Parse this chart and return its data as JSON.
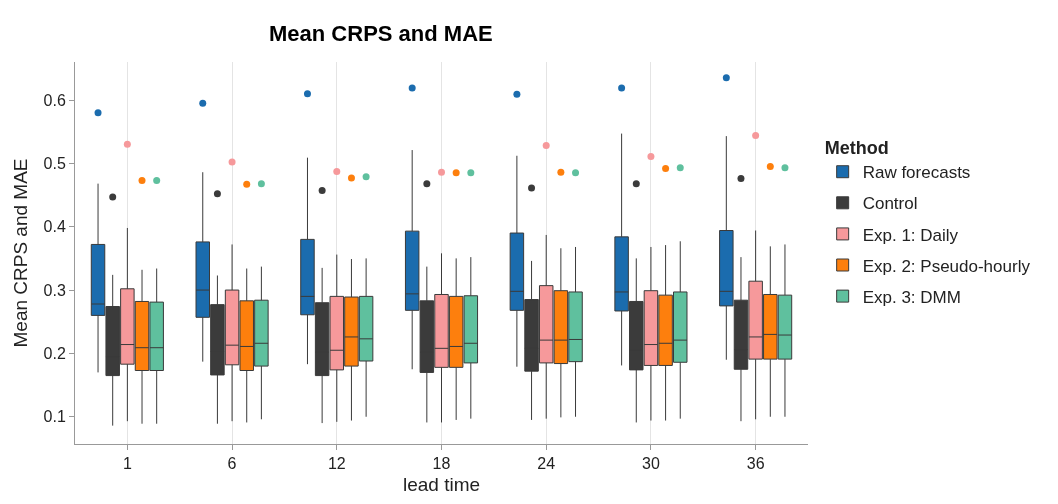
{
  "chart_data": {
    "type": "box",
    "title": "Mean CRPS and MAE",
    "xlabel": "lead time",
    "ylabel": "Mean CRPS and MAE",
    "legend_title": "Method",
    "legend": "right",
    "grid": "x",
    "categories": [
      "1",
      "6",
      "12",
      "18",
      "24",
      "30",
      "36"
    ],
    "ylim": [
      0.057,
      0.66
    ],
    "yticks": [
      0.1,
      0.2,
      0.3,
      0.4,
      0.5,
      0.6
    ],
    "series": [
      {
        "name": "Raw forecasts",
        "color": "#1b6cae",
        "boxes": [
          {
            "low": 0.17,
            "q1": 0.26,
            "median": 0.278,
            "q3": 0.372,
            "high": 0.468,
            "outliers": [
              0.58
            ]
          },
          {
            "low": 0.187,
            "q1": 0.257,
            "median": 0.3,
            "q3": 0.376,
            "high": 0.486,
            "outliers": [
              0.595
            ]
          },
          {
            "low": 0.183,
            "q1": 0.261,
            "median": 0.29,
            "q3": 0.38,
            "high": 0.509,
            "outliers": [
              0.61
            ]
          },
          {
            "low": 0.175,
            "q1": 0.268,
            "median": 0.294,
            "q3": 0.393,
            "high": 0.521,
            "outliers": [
              0.619
            ]
          },
          {
            "low": 0.179,
            "q1": 0.268,
            "median": 0.298,
            "q3": 0.39,
            "high": 0.512,
            "outliers": [
              0.609
            ]
          },
          {
            "low": 0.181,
            "q1": 0.267,
            "median": 0.297,
            "q3": 0.384,
            "high": 0.547,
            "outliers": [
              0.619
            ]
          },
          {
            "low": 0.19,
            "q1": 0.275,
            "median": 0.298,
            "q3": 0.394,
            "high": 0.543,
            "outliers": [
              0.635
            ]
          }
        ]
      },
      {
        "name": "Control",
        "color": "#3b3b3b",
        "boxes": [
          {
            "low": 0.086,
            "q1": 0.165,
            "median": 0.195,
            "q3": 0.274,
            "high": 0.324,
            "outliers": [
              0.447
            ]
          },
          {
            "low": 0.089,
            "q1": 0.166,
            "median": 0.203,
            "q3": 0.277,
            "high": 0.323,
            "outliers": [
              0.452
            ]
          },
          {
            "low": 0.09,
            "q1": 0.165,
            "median": 0.202,
            "q3": 0.28,
            "high": 0.335,
            "outliers": [
              0.457
            ]
          },
          {
            "low": 0.091,
            "q1": 0.17,
            "median": 0.202,
            "q3": 0.283,
            "high": 0.337,
            "outliers": [
              0.468
            ]
          },
          {
            "low": 0.095,
            "q1": 0.172,
            "median": 0.208,
            "q3": 0.285,
            "high": 0.346,
            "outliers": [
              0.461
            ]
          },
          {
            "low": 0.091,
            "q1": 0.174,
            "median": 0.205,
            "q3": 0.282,
            "high": 0.35,
            "outliers": [
              0.468
            ]
          },
          {
            "low": 0.093,
            "q1": 0.175,
            "median": 0.206,
            "q3": 0.284,
            "high": 0.352,
            "outliers": [
              0.476
            ]
          }
        ]
      },
      {
        "name": "Exp. 1: Daily",
        "color": "#f6999b",
        "boxes": [
          {
            "low": 0.093,
            "q1": 0.183,
            "median": 0.214,
            "q3": 0.302,
            "high": 0.398,
            "outliers": [
              0.53
            ]
          },
          {
            "low": 0.093,
            "q1": 0.182,
            "median": 0.213,
            "q3": 0.3,
            "high": 0.372,
            "outliers": [
              0.502
            ]
          },
          {
            "low": 0.092,
            "q1": 0.174,
            "median": 0.205,
            "q3": 0.29,
            "high": 0.356,
            "outliers": [
              0.487
            ]
          },
          {
            "low": 0.091,
            "q1": 0.178,
            "median": 0.208,
            "q3": 0.293,
            "high": 0.358,
            "outliers": [
              0.486
            ]
          },
          {
            "low": 0.097,
            "q1": 0.185,
            "median": 0.221,
            "q3": 0.307,
            "high": 0.387,
            "outliers": [
              0.528
            ]
          },
          {
            "low": 0.094,
            "q1": 0.181,
            "median": 0.214,
            "q3": 0.299,
            "high": 0.368,
            "outliers": [
              0.511
            ]
          },
          {
            "low": 0.096,
            "q1": 0.191,
            "median": 0.226,
            "q3": 0.314,
            "high": 0.394,
            "outliers": [
              0.544
            ]
          }
        ]
      },
      {
        "name": "Exp. 2: Pseudo-hourly",
        "color": "#fd7f0d",
        "boxes": [
          {
            "low": 0.089,
            "q1": 0.173,
            "median": 0.209,
            "q3": 0.282,
            "high": 0.332,
            "outliers": [
              0.473
            ]
          },
          {
            "low": 0.091,
            "q1": 0.173,
            "median": 0.211,
            "q3": 0.283,
            "high": 0.334,
            "outliers": [
              0.467
            ]
          },
          {
            "low": 0.094,
            "q1": 0.18,
            "median": 0.226,
            "q3": 0.289,
            "high": 0.349,
            "outliers": [
              0.477
            ]
          },
          {
            "low": 0.095,
            "q1": 0.178,
            "median": 0.211,
            "q3": 0.29,
            "high": 0.35,
            "outliers": [
              0.485
            ]
          },
          {
            "low": 0.099,
            "q1": 0.184,
            "median": 0.221,
            "q3": 0.299,
            "high": 0.366,
            "outliers": [
              0.486
            ]
          },
          {
            "low": 0.094,
            "q1": 0.181,
            "median": 0.216,
            "q3": 0.292,
            "high": 0.371,
            "outliers": [
              0.492
            ]
          },
          {
            "low": 0.1,
            "q1": 0.191,
            "median": 0.23,
            "q3": 0.293,
            "high": 0.369,
            "outliers": [
              0.495
            ]
          }
        ]
      },
      {
        "name": "Exp. 3: DMM",
        "color": "#5fc09e",
        "boxes": [
          {
            "low": 0.089,
            "q1": 0.173,
            "median": 0.209,
            "q3": 0.281,
            "high": 0.334,
            "outliers": [
              0.473
            ]
          },
          {
            "low": 0.096,
            "q1": 0.18,
            "median": 0.216,
            "q3": 0.284,
            "high": 0.337,
            "outliers": [
              0.468
            ]
          },
          {
            "low": 0.1,
            "q1": 0.188,
            "median": 0.223,
            "q3": 0.29,
            "high": 0.35,
            "outliers": [
              0.479
            ]
          },
          {
            "low": 0.097,
            "q1": 0.185,
            "median": 0.216,
            "q3": 0.291,
            "high": 0.352,
            "outliers": [
              0.485
            ]
          },
          {
            "low": 0.1,
            "q1": 0.187,
            "median": 0.222,
            "q3": 0.297,
            "high": 0.368,
            "outliers": [
              0.485
            ]
          },
          {
            "low": 0.097,
            "q1": 0.186,
            "median": 0.221,
            "q3": 0.297,
            "high": 0.377,
            "outliers": [
              0.493
            ]
          },
          {
            "low": 0.1,
            "q1": 0.191,
            "median": 0.229,
            "q3": 0.292,
            "high": 0.372,
            "outliers": [
              0.493
            ]
          }
        ]
      }
    ]
  }
}
